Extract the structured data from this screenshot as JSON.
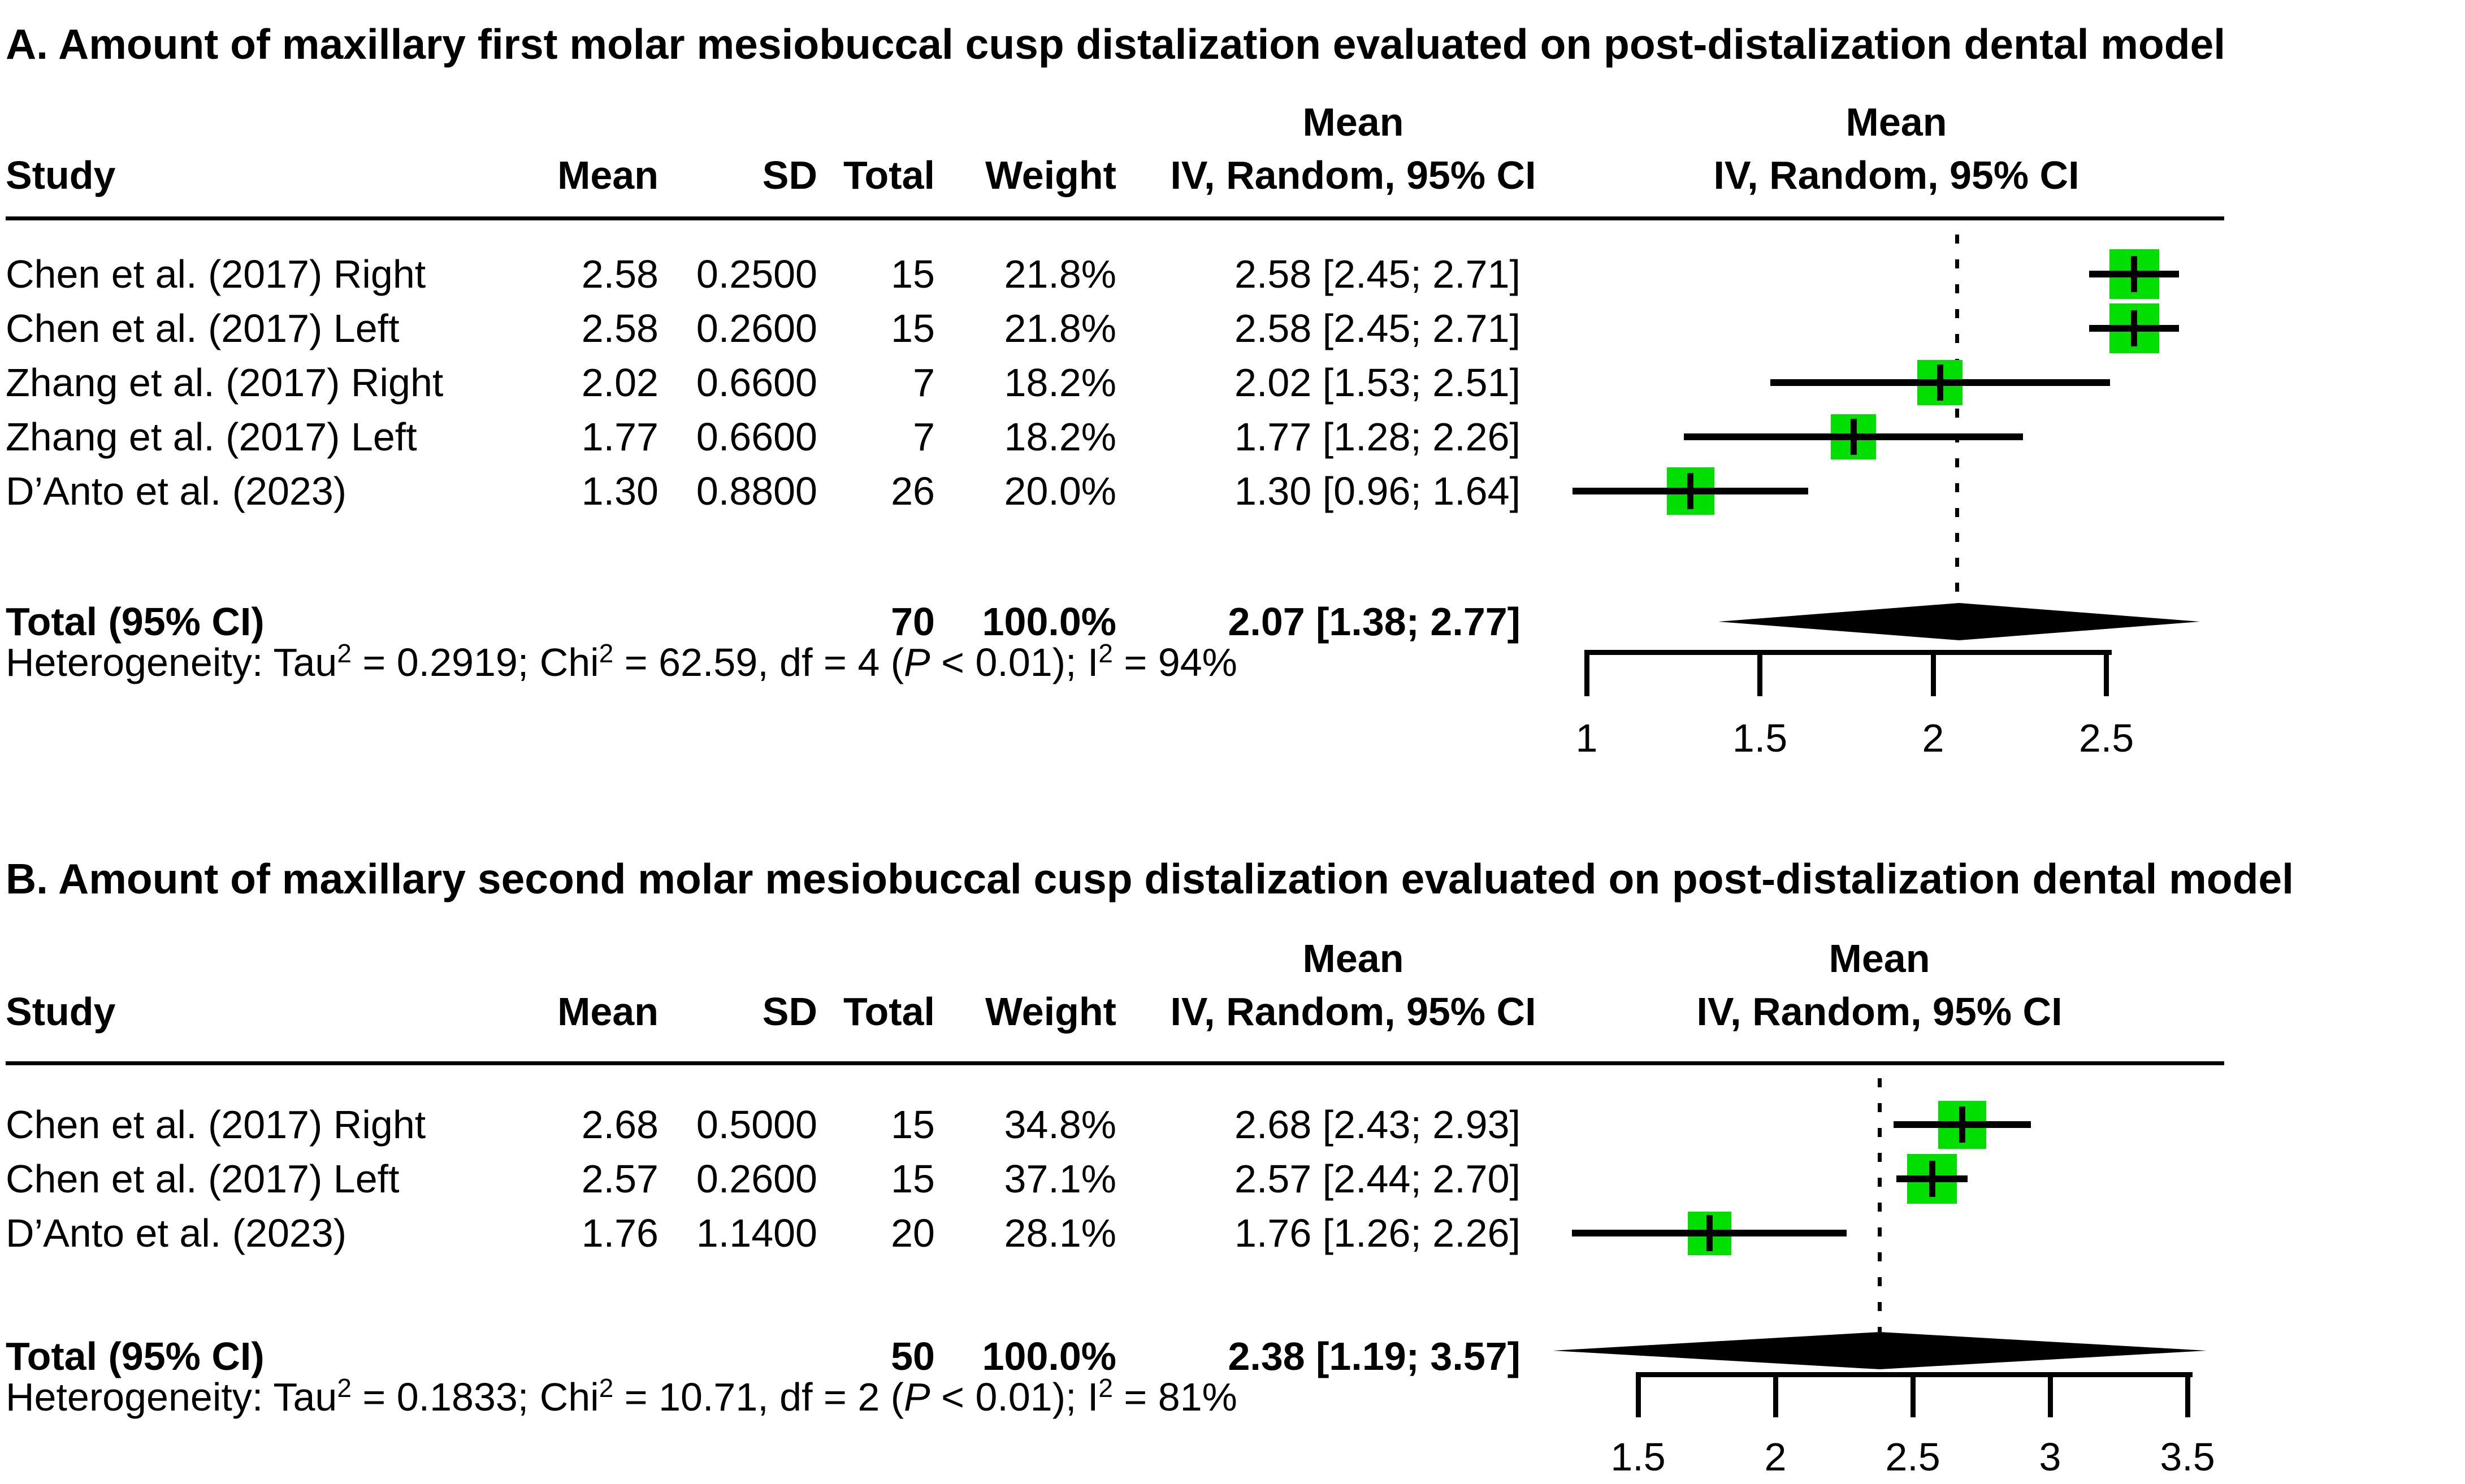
{
  "figure": {
    "background": "#ffffff",
    "square_color": "#00df00",
    "line_color": "#000000"
  },
  "panels": [
    {
      "label": "A",
      "title": "A. Amount of maxillary first molar mesiobuccal cusp distalization evaluated on post-distalization dental model",
      "columns": {
        "study": "Study",
        "mean": "Mean",
        "sd": "SD",
        "total": "Total",
        "weight": "Weight",
        "effect_mean": "Mean",
        "effect_ci": "IV, Random, 95% CI",
        "plot_mean": "Mean",
        "plot_ci": "IV, Random, 95% CI"
      },
      "rows": [
        {
          "study": "Chen et al. (2017) Right",
          "mean": "2.58",
          "sd": "0.2500",
          "total": "15",
          "weight": "21.8%",
          "ci_text": "2.58 [2.45; 2.71]",
          "est": 2.58,
          "lo": 2.45,
          "hi": 2.71,
          "weight_pct": 21.8
        },
        {
          "study": "Chen et al. (2017) Left",
          "mean": "2.58",
          "sd": "0.2600",
          "total": "15",
          "weight": "21.8%",
          "ci_text": "2.58 [2.45; 2.71]",
          "est": 2.58,
          "lo": 2.45,
          "hi": 2.71,
          "weight_pct": 21.8
        },
        {
          "study": "Zhang et al. (2017) Right",
          "mean": "2.02",
          "sd": "0.6600",
          "total": "7",
          "weight": "18.2%",
          "ci_text": "2.02 [1.53; 2.51]",
          "est": 2.02,
          "lo": 1.53,
          "hi": 2.51,
          "weight_pct": 18.2
        },
        {
          "study": "Zhang et al. (2017) Left",
          "mean": "1.77",
          "sd": "0.6600",
          "total": "7",
          "weight": "18.2%",
          "ci_text": "1.77 [1.28; 2.26]",
          "est": 1.77,
          "lo": 1.28,
          "hi": 2.26,
          "weight_pct": 18.2
        },
        {
          "study": "D’Anto et al. (2023)",
          "mean": "1.30",
          "sd": "0.8800",
          "total": "26",
          "weight": "20.0%",
          "ci_text": "1.30 [0.96; 1.64]",
          "est": 1.3,
          "lo": 0.96,
          "hi": 1.64,
          "weight_pct": 20.0
        }
      ],
      "total": {
        "label": "Total (95% CI)",
        "total": "70",
        "weight": "100.0%",
        "ci_text": "2.07 [1.38; 2.77]",
        "est": 2.07,
        "lo": 1.38,
        "hi": 2.77
      },
      "heterogeneity": [
        {
          "t": "Heterogeneity: Tau"
        },
        {
          "t": "2",
          "sup": true
        },
        {
          "t": " = 0.2919; Chi"
        },
        {
          "t": "2",
          "sup": true
        },
        {
          "t": " = 62.59, df = 4 ("
        },
        {
          "t": "P",
          "italic": true
        },
        {
          "t": " < 0.01); I"
        },
        {
          "t": "2",
          "sup": true
        },
        {
          "t": " = 94%"
        }
      ],
      "axis": {
        "ticks": [
          {
            "v": 1,
            "label": "1"
          },
          {
            "v": 1.5,
            "label": "1.5"
          },
          {
            "v": 2,
            "label": "2"
          },
          {
            "v": 2.5,
            "label": "2.5"
          }
        ]
      }
    },
    {
      "label": "B",
      "title": "B. Amount of maxillary second molar mesiobuccal cusp distalization evaluated on post-distalization dental model",
      "columns": {
        "study": "Study",
        "mean": "Mean",
        "sd": "SD",
        "total": "Total",
        "weight": "Weight",
        "effect_mean": "Mean",
        "effect_ci": "IV, Random, 95% CI",
        "plot_mean": "Mean",
        "plot_ci": "IV, Random, 95% CI"
      },
      "rows": [
        {
          "study": "Chen et al. (2017) Right",
          "mean": "2.68",
          "sd": "0.5000",
          "total": "15",
          "weight": "34.8%",
          "ci_text": "2.68 [2.43; 2.93]",
          "est": 2.68,
          "lo": 2.43,
          "hi": 2.93,
          "weight_pct": 34.8
        },
        {
          "study": "Chen et al. (2017) Left",
          "mean": "2.57",
          "sd": "0.2600",
          "total": "15",
          "weight": "37.1%",
          "ci_text": "2.57 [2.44; 2.70]",
          "est": 2.57,
          "lo": 2.44,
          "hi": 2.7,
          "weight_pct": 37.1
        },
        {
          "study": "D’Anto et al. (2023)",
          "mean": "1.76",
          "sd": "1.1400",
          "total": "20",
          "weight": "28.1%",
          "ci_text": "1.76 [1.26; 2.26]",
          "est": 1.76,
          "lo": 1.26,
          "hi": 2.26,
          "weight_pct": 28.1
        }
      ],
      "total": {
        "label": "Total (95% CI)",
        "total": "50",
        "weight": "100.0%",
        "ci_text": "2.38 [1.19; 3.57]",
        "est": 2.38,
        "lo": 1.19,
        "hi": 3.57
      },
      "heterogeneity": [
        {
          "t": "Heterogeneity: Tau"
        },
        {
          "t": "2",
          "sup": true
        },
        {
          "t": " = 0.1833; Chi"
        },
        {
          "t": "2",
          "sup": true
        },
        {
          "t": " = 10.71, df = 2 ("
        },
        {
          "t": "P",
          "italic": true
        },
        {
          "t": " < 0.01); I"
        },
        {
          "t": "2",
          "sup": true
        },
        {
          "t": " = 81%"
        }
      ],
      "axis": {
        "ticks": [
          {
            "v": 1.5,
            "label": "1.5"
          },
          {
            "v": 2,
            "label": "2"
          },
          {
            "v": 2.5,
            "label": "2.5"
          },
          {
            "v": 3,
            "label": "3"
          },
          {
            "v": 3.5,
            "label": "3.5"
          }
        ]
      }
    }
  ],
  "chart_data": [
    {
      "type": "forest",
      "title": "A. Amount of maxillary first molar mesiobuccal cusp distalization evaluated on post-distalization dental model",
      "model": "IV, Random, 95% CI",
      "studies": [
        "Chen et al. (2017) Right",
        "Chen et al. (2017) Left",
        "Zhang et al. (2017) Right",
        "Zhang et al. (2017) Left",
        "D’Anto et al. (2023)"
      ],
      "means": [
        2.58,
        2.58,
        2.02,
        1.77,
        1.3
      ],
      "sds": [
        0.25,
        0.26,
        0.66,
        0.66,
        0.88
      ],
      "totals": [
        15,
        15,
        7,
        7,
        26
      ],
      "weights_pct": [
        21.8,
        21.8,
        18.2,
        18.2,
        20.0
      ],
      "estimates": [
        2.58,
        2.58,
        2.02,
        1.77,
        1.3
      ],
      "ci_lower": [
        2.45,
        2.45,
        1.53,
        1.28,
        0.96
      ],
      "ci_upper": [
        2.71,
        2.71,
        2.51,
        2.26,
        1.64
      ],
      "pooled": {
        "estimate": 2.07,
        "ci_lower": 1.38,
        "ci_upper": 2.77,
        "total": 70,
        "weight_pct": 100.0
      },
      "heterogeneity": {
        "tau2": 0.2919,
        "chi2": 62.59,
        "df": 4,
        "p": "< 0.01",
        "i2_pct": 94
      },
      "x_axis": {
        "ticks": [
          1,
          1.5,
          2,
          2.5
        ]
      }
    },
    {
      "type": "forest",
      "title": "B. Amount of maxillary second molar mesiobuccal cusp distalization evaluated on post-distalization dental model",
      "model": "IV, Random, 95% CI",
      "studies": [
        "Chen et al. (2017) Right",
        "Chen et al. (2017) Left",
        "D’Anto et al. (2023)"
      ],
      "means": [
        2.68,
        2.57,
        1.76
      ],
      "sds": [
        0.5,
        0.26,
        1.14
      ],
      "totals": [
        15,
        15,
        20
      ],
      "weights_pct": [
        34.8,
        37.1,
        28.1
      ],
      "estimates": [
        2.68,
        2.57,
        1.76
      ],
      "ci_lower": [
        2.43,
        2.44,
        1.26
      ],
      "ci_upper": [
        2.93,
        2.7,
        2.26
      ],
      "pooled": {
        "estimate": 2.38,
        "ci_lower": 1.19,
        "ci_upper": 3.57,
        "total": 50,
        "weight_pct": 100.0
      },
      "heterogeneity": {
        "tau2": 0.1833,
        "chi2": 10.71,
        "df": 2,
        "p": "< 0.01",
        "i2_pct": 81
      },
      "x_axis": {
        "ticks": [
          1.5,
          2,
          2.5,
          3,
          3.5
        ]
      }
    }
  ]
}
